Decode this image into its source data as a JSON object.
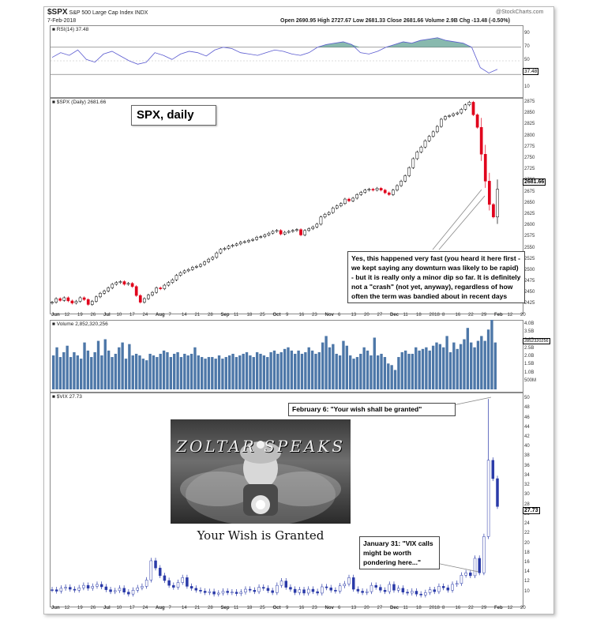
{
  "header": {
    "symbol": "$SPX",
    "name": "S&P 500 Large Cap Index",
    "exchange": "INDX",
    "date": "7-Feb-2018",
    "ohlc": "Open 2690.95  High 2727.67  Low 2681.33  Close 2681.66  Volume 2.9B  Chg -13.48 (-0.50%)",
    "source": "@StockCharts.com"
  },
  "rsi": {
    "label": "RSI(14) 37.48",
    "value": 37.48,
    "ticks": [
      90,
      70,
      50,
      30,
      10
    ],
    "value_label": "37.48"
  },
  "price": {
    "label": "$SPX (Daily) 2681.66",
    "callout": "SPX, daily",
    "last_label": "2681.66"
  },
  "volume": {
    "label": "Volume 2,852,320,256",
    "ticks": [
      "4.0B",
      "3.5B",
      "3.0B",
      "2.5B",
      "2.0B",
      "1.5B",
      "1.0B",
      "500M"
    ],
    "last_label": "2852320256"
  },
  "vix": {
    "label": "$VIX 27.73",
    "last_label": "27.73"
  },
  "annotations": {
    "spx_note": "Yes, this happened very fast (you heard it here first - we kept saying any downturn was likely to be rapid) - but it is really only a minor dip so far. It is definitely not a \"crash\" (not yet, anyway), regardless of how often the term was bandied about in recent days",
    "feb6": "February 6: \"Your wish shall be granted\"",
    "jan31": "January 31: \"VIX calls might be worth pondering here...\"",
    "zoltar_title": "ZOLTAR SPEAKS",
    "zoltar_caption": "Your Wish is Granted"
  },
  "x_axis": [
    "Jun",
    "12",
    "19",
    "26",
    "Jul",
    "10",
    "17",
    "24",
    "Aug",
    "7",
    "14",
    "21",
    "28",
    "Sep",
    "11",
    "18",
    "25",
    "Oct",
    "9",
    "16",
    "23",
    "Nov",
    "6",
    "13",
    "20",
    "27",
    "Dec",
    "11",
    "18",
    "2018",
    "8",
    "16",
    "22",
    "29",
    "Feb",
    "12",
    "20"
  ],
  "colors": {
    "up": "#000000",
    "down": "#e0001b",
    "rsi_fill": "#6aa89a",
    "volume": "#4d77a8",
    "vix": "#2a3aa8"
  },
  "chart_data": [
    {
      "type": "line",
      "title": "RSI(14)",
      "ylim": [
        0,
        100
      ],
      "yticks": [
        90,
        70,
        50,
        30,
        10
      ],
      "series": [
        {
          "name": "RSI(14)",
          "values": [
            55,
            62,
            58,
            66,
            52,
            48,
            60,
            64,
            57,
            50,
            45,
            48,
            62,
            58,
            52,
            60,
            64,
            62,
            57,
            66,
            70,
            68,
            62,
            60,
            58,
            62,
            66,
            64,
            60,
            58,
            62,
            70,
            74,
            76,
            78,
            74,
            62,
            60,
            64,
            70,
            74,
            78,
            76,
            80,
            82,
            84,
            80,
            78,
            76,
            70,
            40,
            32,
            37.48
          ]
        }
      ]
    },
    {
      "type": "candlestick",
      "title": "$SPX (Daily) 2681.66",
      "ylim": [
        2410,
        2882
      ],
      "yticks": [
        2875,
        2850,
        2825,
        2800,
        2775,
        2750,
        2725,
        2700,
        2675,
        2650,
        2625,
        2600,
        2575,
        2550,
        2525,
        2500,
        2475,
        2450,
        2425
      ],
      "series": [
        {
          "name": "$SPX",
          "values": [
            2430,
            2438,
            2434,
            2440,
            2433,
            2428,
            2432,
            2440,
            2436,
            2425,
            2432,
            2442,
            2450,
            2455,
            2462,
            2470,
            2474,
            2476,
            2470,
            2472,
            2465,
            2445,
            2430,
            2438,
            2446,
            2452,
            2462,
            2460,
            2468,
            2474,
            2480,
            2490,
            2496,
            2500,
            2503,
            2508,
            2510,
            2514,
            2520,
            2526,
            2530,
            2540,
            2548,
            2550,
            2555,
            2557,
            2560,
            2564,
            2565,
            2568,
            2570,
            2575,
            2576,
            2580,
            2584,
            2588,
            2590,
            2582,
            2586,
            2588,
            2590,
            2592,
            2580,
            2590,
            2594,
            2598,
            2604,
            2620,
            2626,
            2630,
            2640,
            2645,
            2650,
            2660,
            2656,
            2662,
            2670,
            2675,
            2680,
            2682,
            2680,
            2684,
            2680,
            2674,
            2670,
            2680,
            2690,
            2700,
            2712,
            2730,
            2750,
            2765,
            2776,
            2790,
            2800,
            2810,
            2822,
            2838,
            2844,
            2846,
            2850,
            2852,
            2860,
            2870,
            2876,
            2848,
            2820,
            2760,
            2700,
            2648,
            2620,
            2682
          ]
        }
      ]
    },
    {
      "type": "bar",
      "title": "Volume",
      "ylim": [
        0,
        4.2
      ],
      "yticks": [
        "4.0B",
        "3.5B",
        "3.0B",
        "2.5B",
        "2.0B",
        "1.5B",
        "1.0B",
        "500M"
      ],
      "series": [
        {
          "name": "Volume (B)",
          "values": [
            2.1,
            2.6,
            2.0,
            2.3,
            2.7,
            2.0,
            2.3,
            2.1,
            1.9,
            2.9,
            2.4,
            2.0,
            2.3,
            3.0,
            2.1,
            3.1,
            2.4,
            2.0,
            2.2,
            2.6,
            2.9,
            1.9,
            2.8,
            2.1,
            2.2,
            2.1,
            1.9,
            1.8,
            2.2,
            2.1,
            2.0,
            2.2,
            2.4,
            2.3,
            2.0,
            2.2,
            2.3,
            2.0,
            2.2,
            2.1,
            2.2,
            2.6,
            2.1,
            2.0,
            1.9,
            2.0,
            2.0,
            1.9,
            2.1,
            1.9,
            2.0,
            2.1,
            2.2,
            2.0,
            2.1,
            2.2,
            2.3,
            2.1,
            2.0,
            2.3,
            2.2,
            2.1,
            2.0,
            2.3,
            2.4,
            2.2,
            2.3,
            2.5,
            2.6,
            2.4,
            2.2,
            2.4,
            2.2,
            2.3,
            2.6,
            2.4,
            2.2,
            2.3,
            2.9,
            3.3,
            2.6,
            2.8,
            2.2,
            2.1,
            3.0,
            2.7,
            2.1,
            1.9,
            2.0,
            2.2,
            2.6,
            2.4,
            2.1,
            3.2,
            2.1,
            2.2,
            2.0,
            1.6,
            1.5,
            1.2,
            2.0,
            2.3,
            2.4,
            2.2,
            2.2,
            2.6,
            2.4,
            2.5,
            2.6,
            2.4,
            2.7,
            2.9,
            2.8,
            2.6,
            3.3,
            2.3,
            2.9,
            2.5,
            2.8,
            3.1,
            3.8,
            2.9,
            2.6,
            3.0,
            3.3,
            3.0,
            3.7,
            4.3,
            2.9
          ]
        }
      ]
    },
    {
      "type": "line",
      "title": "$VIX",
      "ylim": [
        7.5,
        51
      ],
      "yticks": [
        50,
        48,
        46,
        44,
        42,
        40,
        38,
        36,
        34,
        32,
        30,
        28,
        26,
        24,
        22,
        20,
        18,
        16,
        14,
        12,
        10
      ],
      "series": [
        {
          "name": "$VIX",
          "values": [
            10.5,
            10.2,
            10.8,
            11.0,
            10.6,
            10.4,
            10.9,
            11.4,
            10.8,
            11.2,
            11.6,
            11.1,
            10.5,
            10.1,
            10.3,
            10.8,
            10.0,
            9.6,
            10.4,
            10.9,
            11.2,
            12.5,
            16.5,
            15.0,
            13.4,
            12.4,
            11.4,
            11.0,
            12.0,
            13.0,
            11.2,
            10.8,
            10.4,
            10.2,
            9.9,
            10.1,
            9.6,
            9.8,
            10.2,
            9.9,
            10.0,
            9.7,
            10.0,
            10.6,
            10.4,
            10.1,
            11.0,
            10.8,
            10.3,
            9.9,
            11.4,
            12.3,
            11.0,
            10.6,
            9.9,
            10.5,
            9.8,
            10.6,
            10.1,
            9.8,
            11.1,
            10.9,
            10.4,
            10.2,
            11.3,
            11.7,
            13.0,
            10.6,
            10.2,
            9.9,
            10.1,
            11.4,
            11.0,
            10.4,
            10.1,
            11.6,
            10.4,
            10.8,
            10.0,
            9.8,
            10.2,
            9.6,
            9.4,
            9.9,
            10.5,
            10.1,
            11.2,
            10.9,
            10.4,
            11.6,
            11.8,
            13.5,
            14.0,
            13.4,
            17.0,
            14.0,
            21.5,
            37.3,
            33.5,
            27.73
          ]
        }
      ]
    }
  ]
}
